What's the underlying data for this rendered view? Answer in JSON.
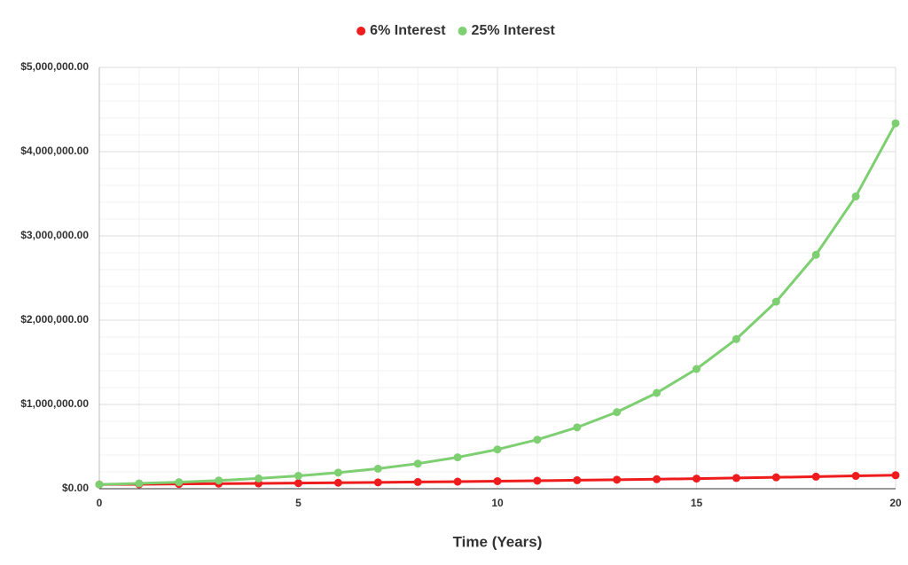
{
  "chart_data": {
    "type": "line",
    "x_label": "Time (Years)",
    "x": [
      0,
      1,
      2,
      3,
      4,
      5,
      6,
      7,
      8,
      9,
      10,
      11,
      12,
      13,
      14,
      15,
      16,
      17,
      18,
      19,
      20
    ],
    "series": [
      {
        "name": "6% Interest",
        "color": "#ee1c1c",
        "values": [
          50000,
          53000,
          56000,
          60000,
          63000,
          67000,
          71000,
          75000,
          80000,
          84000,
          90000,
          95000,
          101000,
          107000,
          113000,
          120000,
          127000,
          135000,
          143000,
          152000,
          160000
        ]
      },
      {
        "name": "25% Interest",
        "color": "#7dcf72",
        "values": [
          50000,
          63000,
          78000,
          98000,
          122000,
          153000,
          191000,
          238000,
          298000,
          373000,
          466000,
          582000,
          728000,
          909000,
          1137000,
          1421000,
          1776000,
          2220000,
          2776000,
          3469000,
          4337000
        ]
      }
    ],
    "xlim": [
      0,
      20
    ],
    "xticks": [
      0,
      5,
      10,
      15,
      20
    ],
    "ylim": [
      0,
      5000000
    ],
    "yticks": [
      {
        "value": 0,
        "label": "$0.00"
      },
      {
        "value": 1000000,
        "label": "$1,000,000.00"
      },
      {
        "value": 2000000,
        "label": "$2,000,000.00"
      },
      {
        "value": 3000000,
        "label": "$3,000,000.00"
      },
      {
        "value": 4000000,
        "label": "$4,000,000.00"
      },
      {
        "value": 5000000,
        "label": "$5,000,000.00"
      }
    ],
    "grid": true,
    "legend": "top"
  }
}
